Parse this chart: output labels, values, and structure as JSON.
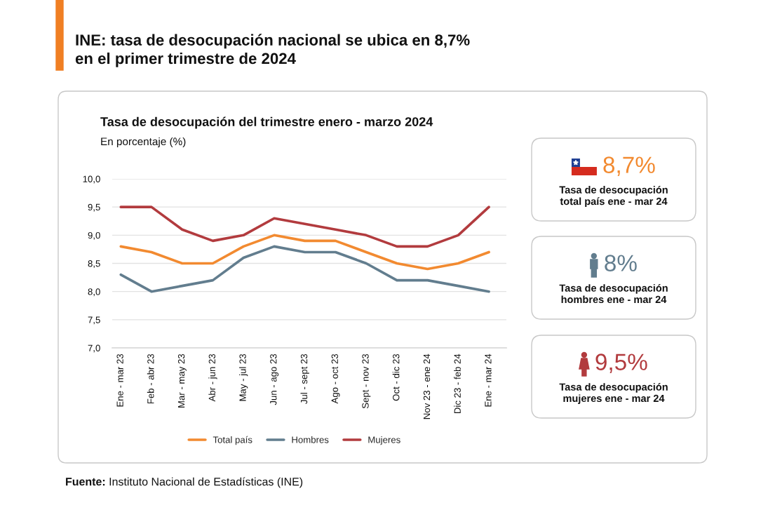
{
  "chart_data": {
    "type": "line",
    "title": "INE: tasa de desocupación nacional se ubica en 8,7%\nen el primer trimestre de 2024",
    "subtitle": "Tasa de desocupación del trimestre enero - marzo 2024",
    "ylabel": "En porcentaje (%)",
    "categories": [
      "Ene - mar 23",
      "Feb - abr 23",
      "Mar - may 23",
      "Abr - jun 23",
      "May - jul 23",
      "Jun - ago 23",
      "Jul - sept 23",
      "Ago - oct 23",
      "Sept - nov 23",
      "Oct - dic 23",
      "Nov 23 - ene 24",
      "Dic 23 - feb 24",
      "Ene - mar 24"
    ],
    "series": [
      {
        "name": "Total país",
        "color": "#f28a30",
        "values": [
          8.8,
          8.7,
          8.5,
          8.5,
          8.8,
          9.0,
          8.9,
          8.9,
          8.7,
          8.5,
          8.4,
          8.5,
          8.7
        ]
      },
      {
        "name": "Hombres",
        "color": "#627d8e",
        "values": [
          8.3,
          8.0,
          8.1,
          8.2,
          8.6,
          8.8,
          8.7,
          8.7,
          8.5,
          8.2,
          8.2,
          8.1,
          8.0
        ]
      },
      {
        "name": "Mujeres",
        "color": "#b23b3e",
        "values": [
          9.5,
          9.5,
          9.1,
          8.9,
          9.0,
          9.3,
          9.2,
          9.1,
          9.0,
          8.8,
          8.8,
          9.0,
          9.5
        ]
      }
    ],
    "ylim": [
      7,
      10
    ],
    "yticks": [
      {
        "value": 7,
        "label": "7,0"
      },
      {
        "value": 7.5,
        "label": "7,5"
      },
      {
        "value": 8,
        "label": "8,0"
      },
      {
        "value": 8.5,
        "label": "8,5"
      },
      {
        "value": 9,
        "label": "9,0"
      },
      {
        "value": 9.5,
        "label": "9,5"
      },
      {
        "value": 10,
        "label": "10,0"
      }
    ],
    "grid": "y",
    "legend": "bottom",
    "annotations": [
      "8,7%",
      "Tasa de desocupación\ntotal país ene - mar 24",
      "8%",
      "Tasa de desocupación\nhombres ene - mar 24",
      "9,5%",
      "Tasa de desocupación\nmujeres ene - mar 24",
      "Fuente:",
      "Instituto Nacional de Estadísticas (INE)"
    ]
  }
}
